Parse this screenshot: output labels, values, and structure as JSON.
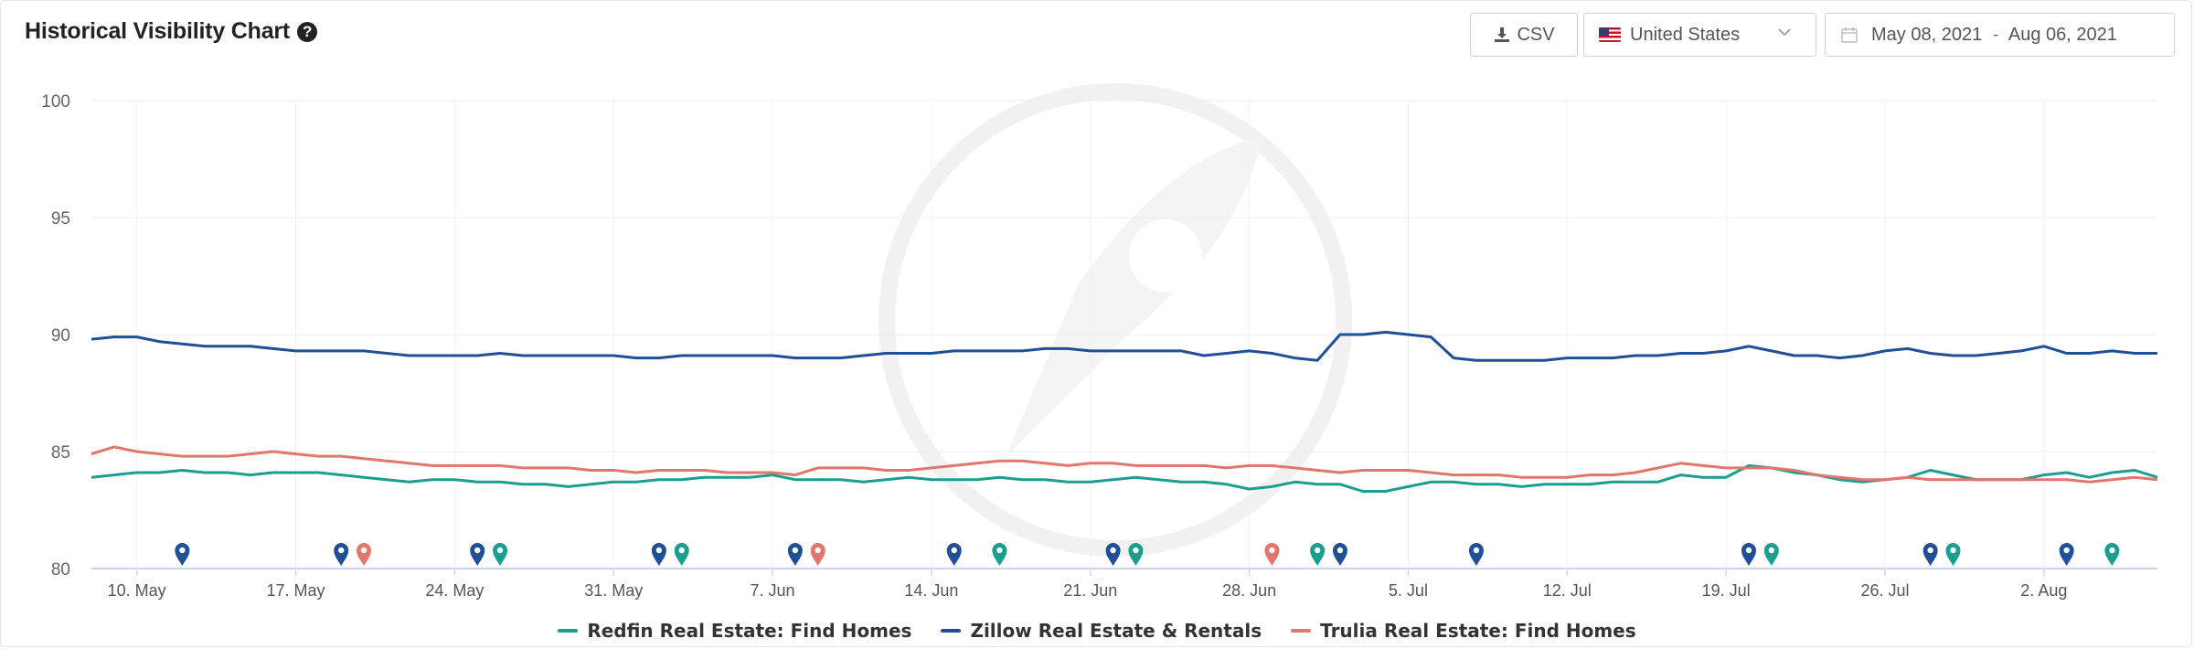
{
  "header": {
    "title": "Historical Visibility Chart",
    "help_icon": "question-circle-icon",
    "csv_label": "CSV",
    "country": "United States",
    "date_start": "May 08, 2021",
    "date_sep": "-",
    "date_end": "Aug 06, 2021"
  },
  "colors": {
    "redfin": "#1a9e8f",
    "zillow": "#1f4f96",
    "trulia": "#e0766c"
  },
  "chart_data": {
    "type": "line",
    "title": "",
    "ylim": [
      80,
      100
    ],
    "yticks": [
      80,
      85,
      90,
      95,
      100
    ],
    "xticks": [
      {
        "label": "10. May",
        "day": 2
      },
      {
        "label": "17. May",
        "day": 9
      },
      {
        "label": "24. May",
        "day": 16
      },
      {
        "label": "31. May",
        "day": 23
      },
      {
        "label": "7. Jun",
        "day": 30
      },
      {
        "label": "14. Jun",
        "day": 37
      },
      {
        "label": "21. Jun",
        "day": 44
      },
      {
        "label": "28. Jun",
        "day": 51
      },
      {
        "label": "5. Jul",
        "day": 58
      },
      {
        "label": "12. Jul",
        "day": 65
      },
      {
        "label": "19. Jul",
        "day": 72
      },
      {
        "label": "26. Jul",
        "day": 79
      },
      {
        "label": "2. Aug",
        "day": 86
      }
    ],
    "grid": true,
    "legend_position": "bottom-center",
    "series": [
      {
        "name": "Redfin Real Estate: Find Homes",
        "color_key": "redfin",
        "values": [
          83.9,
          84.0,
          84.1,
          84.1,
          84.2,
          84.1,
          84.1,
          84.0,
          84.1,
          84.1,
          84.1,
          84.0,
          83.9,
          83.8,
          83.7,
          83.8,
          83.8,
          83.7,
          83.7,
          83.6,
          83.6,
          83.5,
          83.6,
          83.7,
          83.7,
          83.8,
          83.8,
          83.9,
          83.9,
          83.9,
          84.0,
          83.8,
          83.8,
          83.8,
          83.7,
          83.8,
          83.9,
          83.8,
          83.8,
          83.8,
          83.9,
          83.8,
          83.8,
          83.7,
          83.7,
          83.8,
          83.9,
          83.8,
          83.7,
          83.7,
          83.6,
          83.4,
          83.5,
          83.7,
          83.6,
          83.6,
          83.3,
          83.3,
          83.5,
          83.7,
          83.7,
          83.6,
          83.6,
          83.5,
          83.6,
          83.6,
          83.6,
          83.7,
          83.7,
          83.7,
          84.0,
          83.9,
          83.9,
          84.4,
          84.3,
          84.1,
          84.0,
          83.8,
          83.7,
          83.8,
          83.9,
          84.2,
          84.0,
          83.8,
          83.8,
          83.8,
          84.0,
          84.1,
          83.9,
          84.1,
          84.2,
          83.9
        ]
      },
      {
        "name": "Zillow Real Estate & Rentals",
        "color_key": "zillow",
        "values": [
          89.8,
          89.9,
          89.9,
          89.7,
          89.6,
          89.5,
          89.5,
          89.5,
          89.4,
          89.3,
          89.3,
          89.3,
          89.3,
          89.2,
          89.1,
          89.1,
          89.1,
          89.1,
          89.2,
          89.1,
          89.1,
          89.1,
          89.1,
          89.1,
          89.0,
          89.0,
          89.1,
          89.1,
          89.1,
          89.1,
          89.1,
          89.0,
          89.0,
          89.0,
          89.1,
          89.2,
          89.2,
          89.2,
          89.3,
          89.3,
          89.3,
          89.3,
          89.4,
          89.4,
          89.3,
          89.3,
          89.3,
          89.3,
          89.3,
          89.1,
          89.2,
          89.3,
          89.2,
          89.0,
          88.9,
          90.0,
          90.0,
          90.1,
          90.0,
          89.9,
          89.0,
          88.9,
          88.9,
          88.9,
          88.9,
          89.0,
          89.0,
          89.0,
          89.1,
          89.1,
          89.2,
          89.2,
          89.3,
          89.5,
          89.3,
          89.1,
          89.1,
          89.0,
          89.1,
          89.3,
          89.4,
          89.2,
          89.1,
          89.1,
          89.2,
          89.3,
          89.5,
          89.2,
          89.2,
          89.3,
          89.2,
          89.2
        ]
      },
      {
        "name": "Trulia Real Estate: Find Homes",
        "color_key": "trulia",
        "values": [
          84.9,
          85.2,
          85.0,
          84.9,
          84.8,
          84.8,
          84.8,
          84.9,
          85.0,
          84.9,
          84.8,
          84.8,
          84.7,
          84.6,
          84.5,
          84.4,
          84.4,
          84.4,
          84.4,
          84.3,
          84.3,
          84.3,
          84.2,
          84.2,
          84.1,
          84.2,
          84.2,
          84.2,
          84.1,
          84.1,
          84.1,
          84.0,
          84.3,
          84.3,
          84.3,
          84.2,
          84.2,
          84.3,
          84.4,
          84.5,
          84.6,
          84.6,
          84.5,
          84.4,
          84.5,
          84.5,
          84.4,
          84.4,
          84.4,
          84.4,
          84.3,
          84.4,
          84.4,
          84.3,
          84.2,
          84.1,
          84.2,
          84.2,
          84.2,
          84.1,
          84.0,
          84.0,
          84.0,
          83.9,
          83.9,
          83.9,
          84.0,
          84.0,
          84.1,
          84.3,
          84.5,
          84.4,
          84.3,
          84.3,
          84.3,
          84.2,
          84.0,
          83.9,
          83.8,
          83.8,
          83.9,
          83.8,
          83.8,
          83.8,
          83.8,
          83.8,
          83.8,
          83.8,
          83.7,
          83.8,
          83.9,
          83.8
        ]
      }
    ],
    "markers": [
      {
        "day": 4,
        "color_key": "zillow"
      },
      {
        "day": 11,
        "color_key": "zillow"
      },
      {
        "day": 12,
        "color_key": "trulia"
      },
      {
        "day": 17,
        "color_key": "zillow"
      },
      {
        "day": 18,
        "color_key": "redfin"
      },
      {
        "day": 25,
        "color_key": "zillow"
      },
      {
        "day": 26,
        "color_key": "redfin"
      },
      {
        "day": 31,
        "color_key": "zillow"
      },
      {
        "day": 32,
        "color_key": "trulia"
      },
      {
        "day": 38,
        "color_key": "zillow"
      },
      {
        "day": 40,
        "color_key": "redfin"
      },
      {
        "day": 45,
        "color_key": "zillow"
      },
      {
        "day": 46,
        "color_key": "redfin"
      },
      {
        "day": 52,
        "color_key": "trulia"
      },
      {
        "day": 54,
        "color_key": "redfin"
      },
      {
        "day": 55,
        "color_key": "zillow"
      },
      {
        "day": 61,
        "color_key": "zillow"
      },
      {
        "day": 73,
        "color_key": "zillow"
      },
      {
        "day": 74,
        "color_key": "redfin"
      },
      {
        "day": 81,
        "color_key": "zillow"
      },
      {
        "day": 82,
        "color_key": "redfin"
      },
      {
        "day": 87,
        "color_key": "zillow"
      },
      {
        "day": 89,
        "color_key": "redfin"
      }
    ]
  }
}
